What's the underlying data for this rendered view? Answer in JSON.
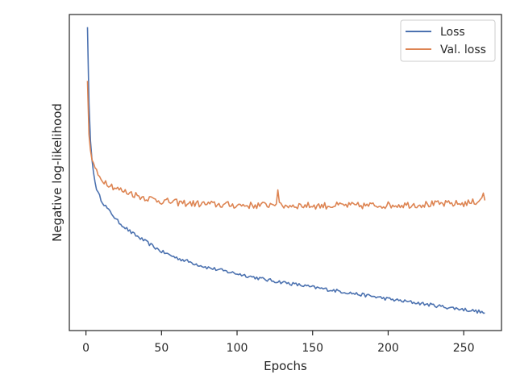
{
  "chart_data": {
    "type": "line",
    "title": "",
    "xlabel": "Epochs",
    "ylabel": "Negative log-likelihood",
    "xlim": [
      -11,
      275
    ],
    "ylim": [
      0,
      100
    ],
    "xticks": [
      0,
      50,
      100,
      150,
      200,
      250
    ],
    "show_y_tick_labels": false,
    "grid": false,
    "legend_position": "top-right",
    "series": [
      {
        "name": "Loss",
        "color": "#4c72b0",
        "points": [
          [
            1,
            96
          ],
          [
            2,
            72
          ],
          [
            3,
            60
          ],
          [
            4,
            54
          ],
          [
            5,
            50
          ],
          [
            6,
            47
          ],
          [
            7,
            45
          ],
          [
            8,
            43.5
          ],
          [
            9,
            42.5
          ],
          [
            10,
            41.5
          ],
          [
            12,
            40
          ],
          [
            15,
            38
          ],
          [
            18,
            36.5
          ],
          [
            20,
            35
          ],
          [
            25,
            33
          ],
          [
            30,
            31
          ],
          [
            35,
            29.5
          ],
          [
            40,
            28
          ],
          [
            45,
            26.5
          ],
          [
            50,
            25
          ],
          [
            60,
            23
          ],
          [
            70,
            21.5
          ],
          [
            80,
            20
          ],
          [
            90,
            19
          ],
          [
            100,
            18
          ],
          [
            110,
            17
          ],
          [
            120,
            16
          ],
          [
            130,
            15.3
          ],
          [
            140,
            14.5
          ],
          [
            150,
            13.7
          ],
          [
            160,
            13
          ],
          [
            170,
            12.3
          ],
          [
            180,
            11.5
          ],
          [
            190,
            10.8
          ],
          [
            200,
            10
          ],
          [
            210,
            9.3
          ],
          [
            220,
            8.7
          ],
          [
            230,
            8
          ],
          [
            240,
            7.3
          ],
          [
            250,
            6.7
          ],
          [
            260,
            6
          ],
          [
            264,
            5.5
          ]
        ]
      },
      {
        "name": "Val. loss",
        "color": "#dd8452",
        "points": [
          [
            1,
            79
          ],
          [
            2,
            62
          ],
          [
            3,
            57
          ],
          [
            4,
            54
          ],
          [
            5,
            53
          ],
          [
            6,
            51.5
          ],
          [
            7,
            50
          ],
          [
            8,
            49
          ],
          [
            10,
            48
          ],
          [
            15,
            46.5
          ],
          [
            20,
            45
          ],
          [
            25,
            44
          ],
          [
            30,
            43.5
          ],
          [
            35,
            42.5
          ],
          [
            40,
            42
          ],
          [
            45,
            41.5
          ],
          [
            50,
            41
          ],
          [
            60,
            40.5
          ],
          [
            70,
            40.2
          ],
          [
            80,
            40
          ],
          [
            90,
            39.8
          ],
          [
            100,
            39.7
          ],
          [
            110,
            39.6
          ],
          [
            120,
            39.7
          ],
          [
            126,
            40.5
          ],
          [
            127,
            44.5
          ],
          [
            128,
            39.5
          ],
          [
            140,
            39.6
          ],
          [
            150,
            39.5
          ],
          [
            160,
            39.5
          ],
          [
            170,
            39.6
          ],
          [
            180,
            39.5
          ],
          [
            190,
            39.6
          ],
          [
            200,
            39.7
          ],
          [
            210,
            39.8
          ],
          [
            220,
            39.9
          ],
          [
            230,
            40
          ],
          [
            240,
            40.1
          ],
          [
            250,
            40.2
          ],
          [
            255,
            40.5
          ],
          [
            260,
            41
          ],
          [
            263,
            43.5
          ],
          [
            264,
            40.5
          ]
        ]
      }
    ]
  }
}
